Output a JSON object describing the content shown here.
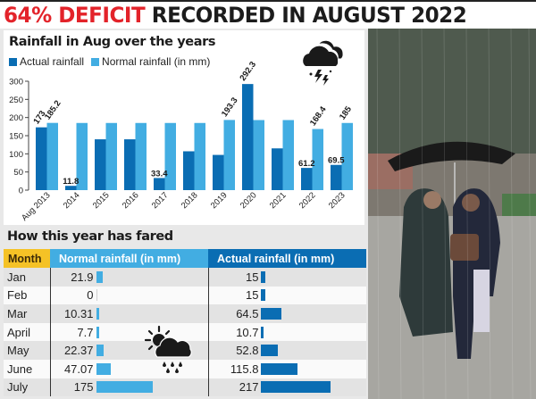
{
  "headline": {
    "highlight": "64% DEFICIT",
    "rest": " RECORDED IN AUGUST 2022",
    "highlight_color": "#e3232a"
  },
  "chart_data": {
    "type": "bar",
    "title": "Rainfall in Aug over the years",
    "xlabel": "",
    "ylabel": "",
    "ylim": [
      0,
      300
    ],
    "yticks": [
      0,
      50,
      100,
      150,
      200,
      250,
      300
    ],
    "categories": [
      "Aug 2013",
      "2014",
      "2015",
      "2016",
      "2017",
      "2018",
      "2019",
      "2020",
      "2021",
      "2022",
      "2023"
    ],
    "series": [
      {
        "name": "Actual rainfall",
        "color": "#0a6db3",
        "values": [
          173,
          11.8,
          140,
          140,
          33.4,
          107,
          97,
          292.3,
          115,
          61.2,
          69.5
        ]
      },
      {
        "name": "Normal rainfall (in mm)",
        "color": "#42ade2",
        "values": [
          185.2,
          185,
          185,
          185,
          185,
          185,
          193.3,
          193,
          193,
          168.4,
          185
        ]
      }
    ],
    "annotations": [
      {
        "category": "Aug 2013",
        "series": "Actual rainfall",
        "label": "173"
      },
      {
        "category": "Aug 2013",
        "series": "Normal rainfall (in mm)",
        "label": "185.2"
      },
      {
        "category": "2014",
        "series": "Actual rainfall",
        "label": "11.8"
      },
      {
        "category": "2017",
        "series": "Actual rainfall",
        "label": "33.4"
      },
      {
        "category": "2019",
        "series": "Normal rainfall (in mm)",
        "label": "193.3"
      },
      {
        "category": "2020",
        "series": "Actual rainfall",
        "label": "292.3"
      },
      {
        "category": "2022",
        "series": "Actual rainfall",
        "label": "61.2"
      },
      {
        "category": "2022",
        "series": "Normal rainfall (in mm)",
        "label": "168.4"
      },
      {
        "category": "2023",
        "series": "Actual rainfall",
        "label": "69.5"
      },
      {
        "category": "2023",
        "series": "Normal rainfall (in mm)",
        "label": "185"
      }
    ],
    "legend_position": "top-left",
    "grid": false
  },
  "legend": {
    "actual": "Actual rainfall",
    "normal": "Normal rainfall (in mm)"
  },
  "table": {
    "title": "How this year has fared",
    "headers": {
      "month": "Month",
      "normal": "Normal rainfall (in mm)",
      "actual": "Actual rainfall (in mm)"
    },
    "rows": [
      {
        "month": "Jan",
        "normal": "21.9",
        "actual": "15"
      },
      {
        "month": "Feb",
        "normal": "0",
        "actual": "15"
      },
      {
        "month": "Mar",
        "normal": "10.31",
        "actual": "64.5"
      },
      {
        "month": "April",
        "normal": "7.7",
        "actual": "10.7"
      },
      {
        "month": "May",
        "normal": "22.37",
        "actual": "52.8"
      },
      {
        "month": "June",
        "normal": "47.07",
        "actual": "115.8"
      },
      {
        "month": "July",
        "normal": "175",
        "actual": "217"
      }
    ]
  },
  "colors": {
    "actual": "#0a6db3",
    "normal": "#42ade2",
    "month_header": "#f5c226",
    "headline_red": "#e3232a"
  }
}
